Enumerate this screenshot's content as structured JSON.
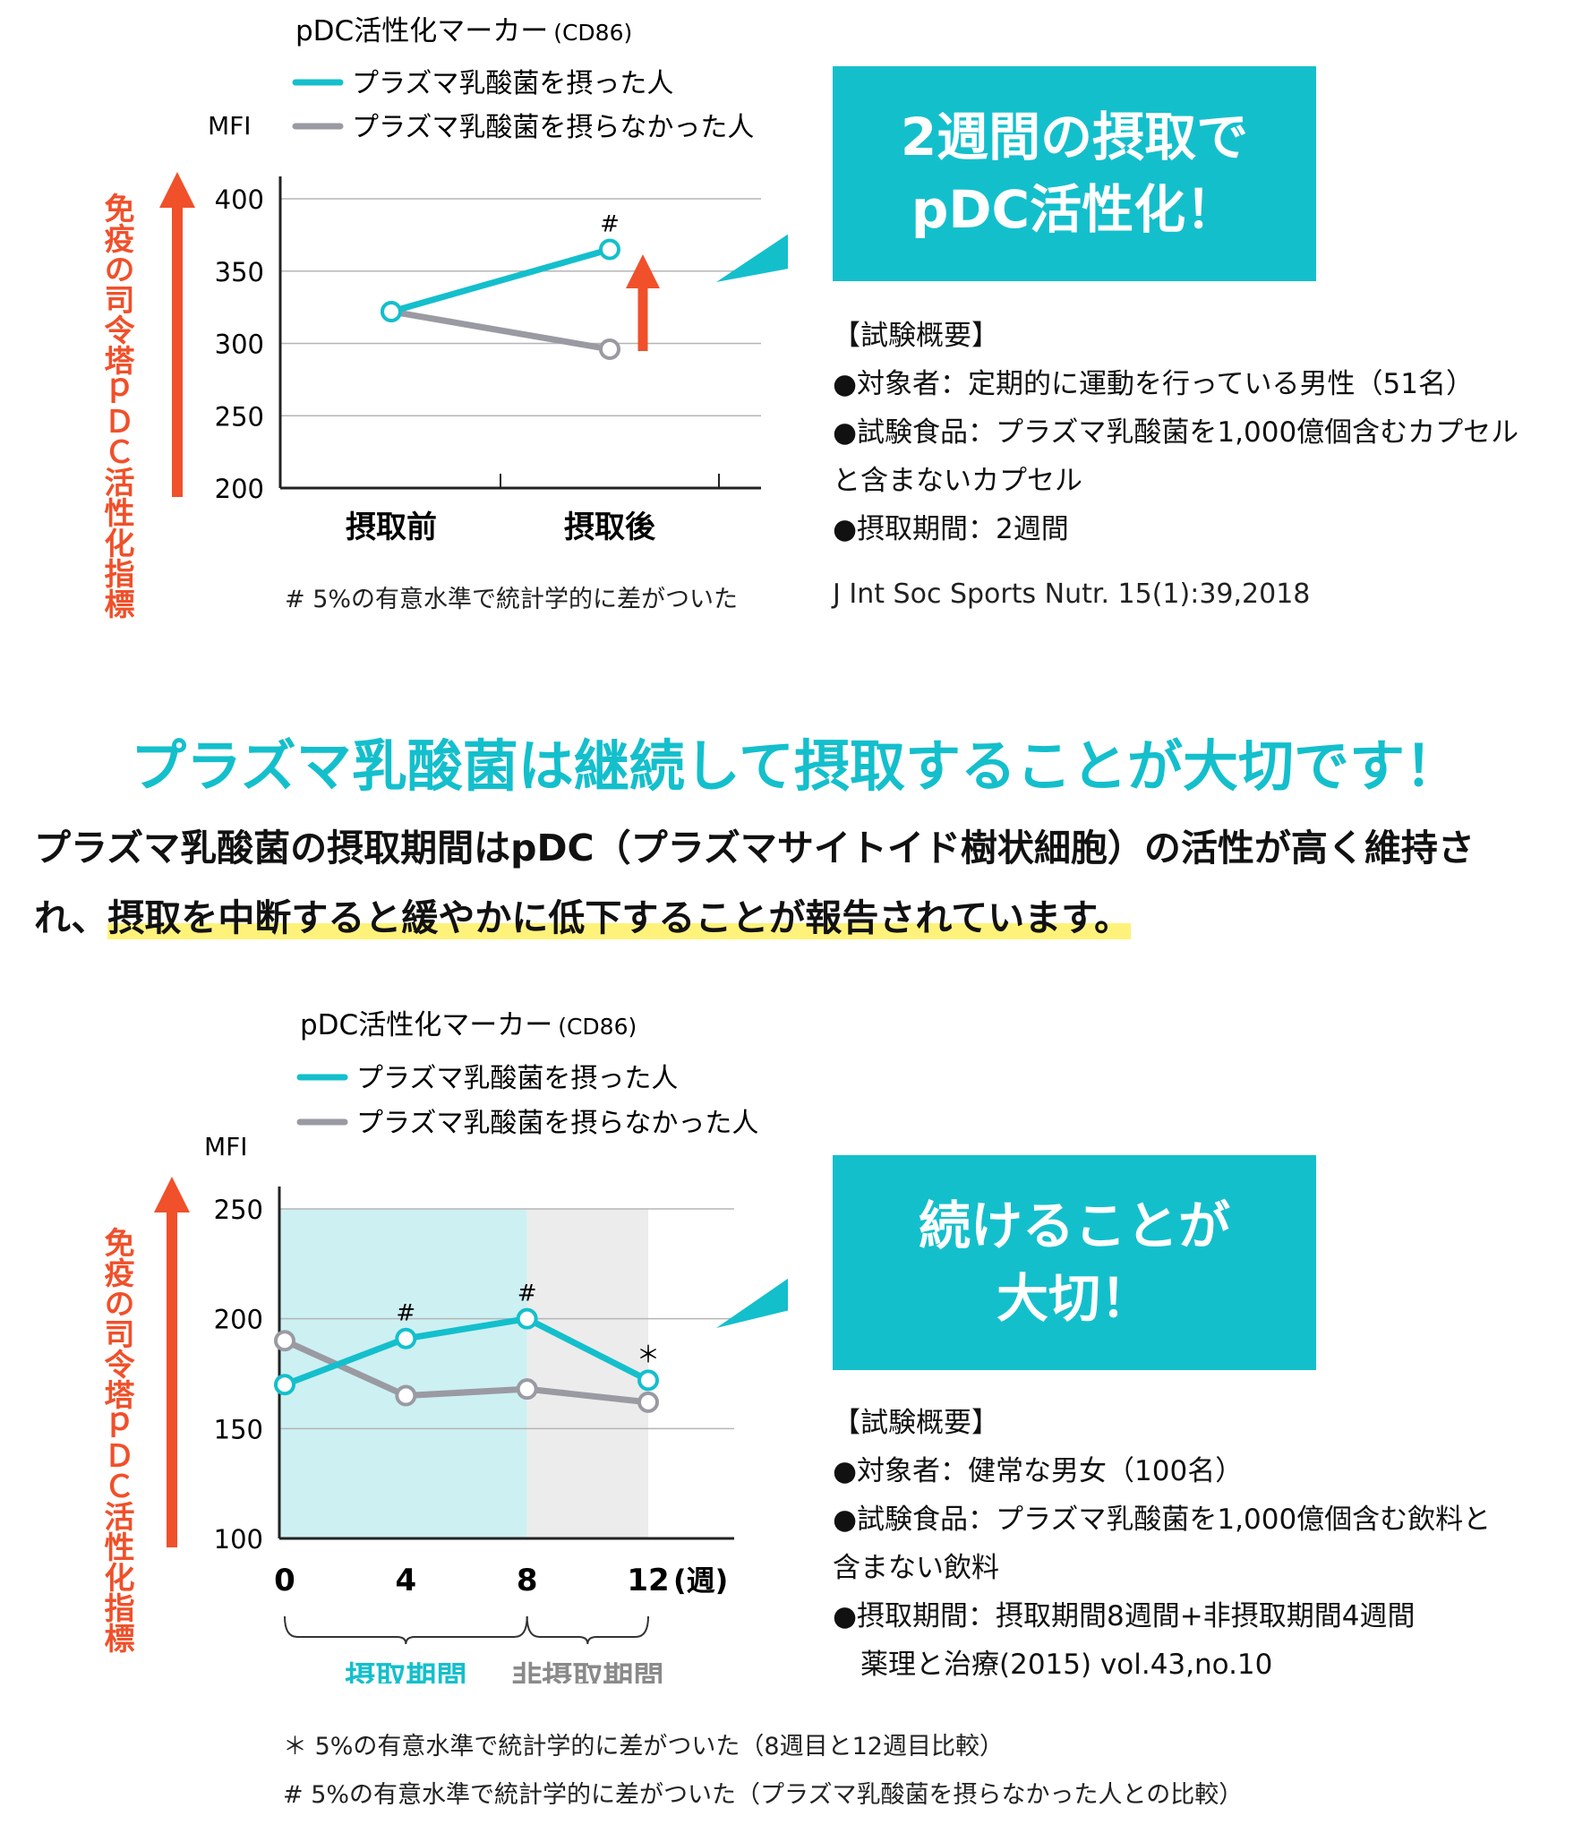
{
  "chart_data": [
    {
      "type": "line",
      "title": "pDC活性化マーカー",
      "subtitle": "(CD86)",
      "unit": "MFI",
      "ylabel": "免疫の司令塔ｐＤＣ活性化指標",
      "categories": [
        "摂取前",
        "摂取後"
      ],
      "yticks": [
        "400",
        "350",
        "300",
        "250",
        "200"
      ],
      "ylim": [
        200,
        400
      ],
      "grid": true,
      "legend_placement": "top",
      "series": [
        {
          "name": "プラズマ乳酸菌を摂った人",
          "color": "#14bfcc",
          "values": [
            322,
            365
          ]
        },
        {
          "name": "プラズマ乳酸菌を摂らなかった人",
          "color": "#9a9aa3",
          "values": [
            322,
            296
          ]
        }
      ],
      "annotations": [
        {
          "category": "摂取後",
          "series": 0,
          "text": "#"
        }
      ],
      "note": "# 5%の有意水準で統計学的に差がついた"
    },
    {
      "type": "line",
      "title": "pDC活性化マーカー",
      "subtitle": "(CD86)",
      "unit": "MFI",
      "ylabel": "免疫の司令塔ｐＤＣ活性化指標",
      "x": [
        0,
        4,
        8,
        12
      ],
      "xticks": [
        "0",
        "4",
        "8",
        "12"
      ],
      "xunit": "(週)",
      "yticks": [
        "250",
        "200",
        "150",
        "100"
      ],
      "ylim": [
        100,
        250
      ],
      "xlim": [
        0,
        12
      ],
      "grid": true,
      "legend_placement": "top",
      "series": [
        {
          "name": "プラズマ乳酸菌を摂った人",
          "color": "#14bfcc",
          "values": [
            170,
            191,
            200,
            172
          ]
        },
        {
          "name": "プラズマ乳酸菌を摂らなかった人",
          "color": "#9a9aa3",
          "values": [
            190,
            165,
            168,
            162
          ]
        }
      ],
      "annotations": [
        {
          "x": 4,
          "series": 0,
          "text": "#"
        },
        {
          "x": 8,
          "series": 0,
          "text": "#"
        },
        {
          "x": 12,
          "series": 0,
          "text": "＊"
        }
      ],
      "periods": [
        {
          "label": "摂取期間",
          "from": 0,
          "to": 8,
          "color": "#cdf0f3",
          "text_color": "#14bfcc"
        },
        {
          "label": "非摂取期間",
          "from": 8,
          "to": 12,
          "color": "#ececec",
          "text_color": "#8a8a8a"
        }
      ],
      "notes": [
        "＊ 5%の有意水準で統計学的に差がついた（8週目と12週目比較）",
        "# 5%の有意水準で統計学的に差がついた（プラズマ乳酸菌を摂らなかった人との比較）"
      ]
    }
  ],
  "top": {
    "callout": [
      "2週間の摂取で",
      "pDC活性化！"
    ],
    "summary": [
      "【試験概要】",
      "●対象者：定期的に運動を行っている男性（51名）",
      "●試験食品：プラズマ乳酸菌を1,000億個含むカプセル",
      "と含まないカプセル",
      "●摂取期間：2週間"
    ],
    "citation": "J Int Soc Sports Nutr. 15(1):39,2018"
  },
  "middle": {
    "headline": "プラズマ乳酸菌は継続して摂取することが大切です！",
    "para_line1": "プラズマ乳酸菌の摂取期間はpDC（プラズマサイトイド樹状細胞）の活性が高く維持さ",
    "para_line2_prefix": "れ、",
    "para_line2_highlight": "摂取を中断すると緩やかに低下することが報告されています。"
  },
  "bottom": {
    "callout": [
      "続けることが",
      "大切！"
    ],
    "summary": [
      "【試験概要】",
      "●対象者：健常な男女（100名）",
      "●試験食品：プラズマ乳酸菌を1,000億個含む飲料と",
      "含まない飲料",
      "●摂取期間：摂取期間8週間+非摂取期間4週間",
      "　薬理と治療(2015) vol.43,no.10"
    ]
  },
  "colors": {
    "accent": "#14bfcc",
    "gray": "#9a9aa3",
    "arrow": "#f0502a",
    "highlight": "#fff27a"
  }
}
